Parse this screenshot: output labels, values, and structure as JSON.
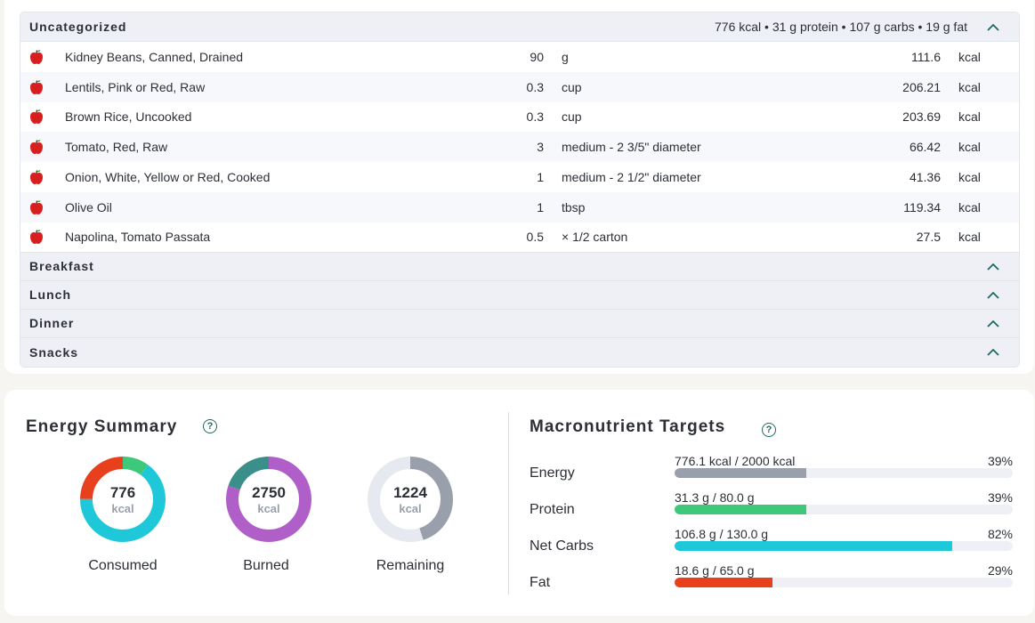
{
  "diary": {
    "groups": [
      {
        "title": "Uncategorized",
        "summary": "776 kcal • 31 g protein • 107 g carbs • 19 g fat",
        "items": [
          {
            "name": "Kidney Beans, Canned, Drained",
            "amount": "90",
            "unit": "g",
            "kcal": "111.6",
            "kcal_unit": "kcal"
          },
          {
            "name": "Lentils, Pink or Red, Raw",
            "amount": "0.3",
            "unit": "cup",
            "kcal": "206.21",
            "kcal_unit": "kcal"
          },
          {
            "name": "Brown Rice, Uncooked",
            "amount": "0.3",
            "unit": "cup",
            "kcal": "203.69",
            "kcal_unit": "kcal"
          },
          {
            "name": "Tomato, Red, Raw",
            "amount": "3",
            "unit": "medium - 2 3/5\" diameter",
            "kcal": "66.42",
            "kcal_unit": "kcal"
          },
          {
            "name": "Onion, White, Yellow or Red, Cooked",
            "amount": "1",
            "unit": "medium - 2 1/2\" diameter",
            "kcal": "41.36",
            "kcal_unit": "kcal"
          },
          {
            "name": "Olive Oil",
            "amount": "1",
            "unit": "tbsp",
            "kcal": "119.34",
            "kcal_unit": "kcal"
          },
          {
            "name": "Napolina, Tomato Passata",
            "amount": "0.5",
            "unit": "× 1/2 carton",
            "kcal": "27.5",
            "kcal_unit": "kcal"
          }
        ]
      },
      {
        "title": "Breakfast"
      },
      {
        "title": "Lunch"
      },
      {
        "title": "Dinner"
      },
      {
        "title": "Snacks"
      }
    ],
    "icons": {
      "food": "apple-icon",
      "collapse": "chevron-up-icon"
    }
  },
  "energy": {
    "title": "Energy Summary",
    "help_icon": "?",
    "consumed": {
      "value": "776",
      "unit": "kcal",
      "label": "Consumed",
      "segments": [
        {
          "color": "#3ec97a",
          "fraction": 0.1
        },
        {
          "color": "#1ec8d8",
          "fraction": 0.65
        },
        {
          "color": "#e8401c",
          "fraction": 0.25
        }
      ]
    },
    "burned": {
      "value": "2750",
      "unit": "kcal",
      "label": "Burned",
      "segments": [
        {
          "color": "#b05fc9",
          "fraction": 0.8
        },
        {
          "color": "#3a8f8a",
          "fraction": 0.2
        }
      ]
    },
    "remaining": {
      "value": "1224",
      "unit": "kcal",
      "label": "Remaining",
      "segments": [
        {
          "color": "#9aa0ab",
          "fraction": 0.45
        },
        {
          "color": "#e6e9ef",
          "fraction": 0.55
        }
      ]
    }
  },
  "macros": {
    "title": "Macronutrient Targets",
    "help_icon": "?",
    "rows": [
      {
        "name": "Energy",
        "value": "776.1 kcal / 2000 kcal",
        "percent": "39%",
        "fraction": 0.39,
        "color": "#9aa0ab"
      },
      {
        "name": "Protein",
        "value": "31.3 g / 80.0 g",
        "percent": "39%",
        "fraction": 0.39,
        "color": "#3ec97a"
      },
      {
        "name": "Net Carbs",
        "value": "106.8 g / 130.0 g",
        "percent": "82%",
        "fraction": 0.82,
        "color": "#1ec8d8"
      },
      {
        "name": "Fat",
        "value": "18.6 g / 65.0 g",
        "percent": "29%",
        "fraction": 0.29,
        "color": "#e8401c"
      }
    ]
  }
}
